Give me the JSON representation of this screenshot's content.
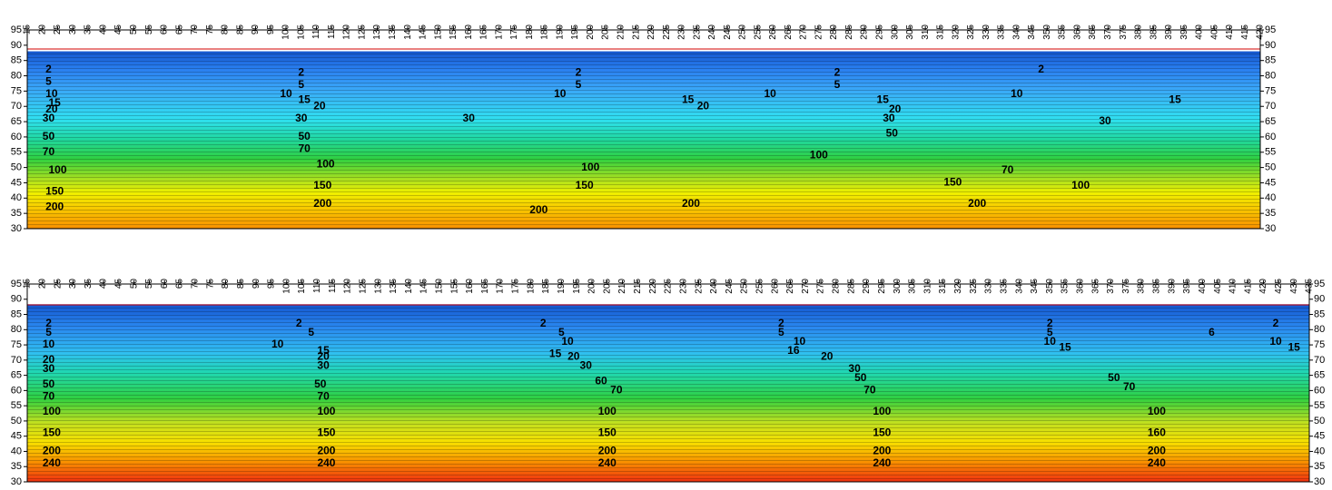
{
  "chart_data": [
    {
      "type": "contour",
      "xlim": [
        15,
        420
      ],
      "xticks": [
        15,
        20,
        25,
        30,
        35,
        40,
        45,
        50,
        55,
        60,
        65,
        70,
        75,
        80,
        85,
        90,
        95,
        100,
        105,
        110,
        115,
        120,
        125,
        130,
        135,
        140,
        145,
        150,
        155,
        160,
        165,
        170,
        175,
        180,
        185,
        190,
        195,
        200,
        205,
        210,
        215,
        220,
        225,
        230,
        235,
        240,
        245,
        250,
        255,
        260,
        265,
        270,
        275,
        280,
        285,
        290,
        295,
        300,
        305,
        310,
        315,
        320,
        325,
        330,
        335,
        340,
        345,
        350,
        355,
        360,
        365,
        370,
        375,
        380,
        385,
        390,
        395,
        400,
        405,
        410,
        415,
        420
      ],
      "ylim": [
        30,
        95
      ],
      "yticks": [
        30,
        35,
        40,
        45,
        50,
        55,
        60,
        65,
        70,
        75,
        80,
        85,
        90,
        95
      ],
      "labels": [
        {
          "x": 22,
          "y": 82,
          "value": 2
        },
        {
          "x": 22,
          "y": 78,
          "value": 5
        },
        {
          "x": 23,
          "y": 74,
          "value": 10
        },
        {
          "x": 24,
          "y": 71,
          "value": 15
        },
        {
          "x": 23,
          "y": 69,
          "value": 20
        },
        {
          "x": 22,
          "y": 66,
          "value": 30
        },
        {
          "x": 22,
          "y": 60,
          "value": 50
        },
        {
          "x": 22,
          "y": 55,
          "value": 70
        },
        {
          "x": 25,
          "y": 49,
          "value": 100
        },
        {
          "x": 24,
          "y": 42,
          "value": 150
        },
        {
          "x": 24,
          "y": 37,
          "value": 200
        },
        {
          "x": 105,
          "y": 81,
          "value": 2
        },
        {
          "x": 105,
          "y": 77,
          "value": 5
        },
        {
          "x": 100,
          "y": 74,
          "value": 10
        },
        {
          "x": 106,
          "y": 72,
          "value": 15
        },
        {
          "x": 111,
          "y": 70,
          "value": 20
        },
        {
          "x": 105,
          "y": 66,
          "value": 30
        },
        {
          "x": 106,
          "y": 60,
          "value": 50
        },
        {
          "x": 106,
          "y": 56,
          "value": 70
        },
        {
          "x": 113,
          "y": 51,
          "value": 100
        },
        {
          "x": 112,
          "y": 44,
          "value": 150
        },
        {
          "x": 112,
          "y": 38,
          "value": 200
        },
        {
          "x": 196,
          "y": 81,
          "value": 2
        },
        {
          "x": 196,
          "y": 77,
          "value": 5
        },
        {
          "x": 190,
          "y": 74,
          "value": 10
        },
        {
          "x": 160,
          "y": 66,
          "value": 30
        },
        {
          "x": 200,
          "y": 50,
          "value": 100
        },
        {
          "x": 198,
          "y": 44,
          "value": 150
        },
        {
          "x": 183,
          "y": 36,
          "value": 200
        },
        {
          "x": 232,
          "y": 72,
          "value": 15
        },
        {
          "x": 237,
          "y": 70,
          "value": 20
        },
        {
          "x": 259,
          "y": 74,
          "value": 10
        },
        {
          "x": 233,
          "y": 38,
          "value": 200
        },
        {
          "x": 281,
          "y": 81,
          "value": 2
        },
        {
          "x": 281,
          "y": 77,
          "value": 5
        },
        {
          "x": 296,
          "y": 72,
          "value": 15
        },
        {
          "x": 300,
          "y": 69,
          "value": 20
        },
        {
          "x": 298,
          "y": 66,
          "value": 30
        },
        {
          "x": 299,
          "y": 61,
          "value": 50
        },
        {
          "x": 275,
          "y": 54,
          "value": 100
        },
        {
          "x": 319,
          "y": 45,
          "value": 150
        },
        {
          "x": 327,
          "y": 38,
          "value": 200
        },
        {
          "x": 348,
          "y": 82,
          "value": 2
        },
        {
          "x": 340,
          "y": 74,
          "value": 10
        },
        {
          "x": 392,
          "y": 72,
          "value": 15
        },
        {
          "x": 369,
          "y": 65,
          "value": 30
        },
        {
          "x": 337,
          "y": 49,
          "value": 70
        },
        {
          "x": 361,
          "y": 44,
          "value": 100
        }
      ]
    },
    {
      "type": "contour",
      "xlim": [
        15,
        435
      ],
      "xticks": [
        15,
        20,
        25,
        30,
        35,
        40,
        45,
        50,
        55,
        60,
        65,
        70,
        75,
        80,
        85,
        90,
        95,
        100,
        105,
        110,
        115,
        120,
        125,
        130,
        135,
        140,
        145,
        150,
        155,
        160,
        165,
        170,
        175,
        180,
        185,
        190,
        195,
        200,
        205,
        210,
        215,
        220,
        225,
        230,
        235,
        240,
        245,
        250,
        255,
        260,
        265,
        270,
        275,
        280,
        285,
        290,
        295,
        300,
        305,
        310,
        315,
        320,
        325,
        330,
        335,
        340,
        345,
        350,
        355,
        360,
        365,
        370,
        375,
        380,
        385,
        390,
        395,
        400,
        405,
        410,
        415,
        420,
        425,
        430,
        435
      ],
      "ylim": [
        30,
        95
      ],
      "yticks": [
        30,
        35,
        40,
        45,
        50,
        55,
        60,
        65,
        70,
        75,
        80,
        85,
        90,
        95
      ],
      "labels": [
        {
          "x": 22,
          "y": 82,
          "value": 2
        },
        {
          "x": 22,
          "y": 79,
          "value": 5
        },
        {
          "x": 22,
          "y": 75,
          "value": 10
        },
        {
          "x": 22,
          "y": 70,
          "value": 20
        },
        {
          "x": 22,
          "y": 67,
          "value": 30
        },
        {
          "x": 22,
          "y": 62,
          "value": 50
        },
        {
          "x": 22,
          "y": 58,
          "value": 70
        },
        {
          "x": 23,
          "y": 53,
          "value": 100
        },
        {
          "x": 23,
          "y": 46,
          "value": 150
        },
        {
          "x": 23,
          "y": 40,
          "value": 200
        },
        {
          "x": 23,
          "y": 36,
          "value": 240
        },
        {
          "x": 104,
          "y": 82,
          "value": 2
        },
        {
          "x": 108,
          "y": 79,
          "value": 5
        },
        {
          "x": 97,
          "y": 75,
          "value": 10
        },
        {
          "x": 112,
          "y": 73,
          "value": 15
        },
        {
          "x": 112,
          "y": 71,
          "value": 20
        },
        {
          "x": 112,
          "y": 68,
          "value": 30
        },
        {
          "x": 111,
          "y": 62,
          "value": 50
        },
        {
          "x": 112,
          "y": 58,
          "value": 70
        },
        {
          "x": 113,
          "y": 53,
          "value": 100
        },
        {
          "x": 113,
          "y": 46,
          "value": 150
        },
        {
          "x": 113,
          "y": 40,
          "value": 200
        },
        {
          "x": 113,
          "y": 36,
          "value": 240
        },
        {
          "x": 184,
          "y": 82,
          "value": 2
        },
        {
          "x": 190,
          "y": 79,
          "value": 5
        },
        {
          "x": 192,
          "y": 76,
          "value": 10
        },
        {
          "x": 188,
          "y": 72,
          "value": 15
        },
        {
          "x": 194,
          "y": 71,
          "value": 20
        },
        {
          "x": 198,
          "y": 68,
          "value": 30
        },
        {
          "x": 203,
          "y": 63,
          "value": 60
        },
        {
          "x": 208,
          "y": 60,
          "value": 70
        },
        {
          "x": 205,
          "y": 53,
          "value": 100
        },
        {
          "x": 205,
          "y": 46,
          "value": 150
        },
        {
          "x": 205,
          "y": 40,
          "value": 200
        },
        {
          "x": 205,
          "y": 36,
          "value": 240
        },
        {
          "x": 262,
          "y": 82,
          "value": 2
        },
        {
          "x": 262,
          "y": 79,
          "value": 5
        },
        {
          "x": 268,
          "y": 76,
          "value": 10
        },
        {
          "x": 266,
          "y": 73,
          "value": 16
        },
        {
          "x": 277,
          "y": 71,
          "value": 20
        },
        {
          "x": 286,
          "y": 67,
          "value": 30
        },
        {
          "x": 288,
          "y": 64,
          "value": 50
        },
        {
          "x": 291,
          "y": 60,
          "value": 70
        },
        {
          "x": 295,
          "y": 53,
          "value": 100
        },
        {
          "x": 295,
          "y": 46,
          "value": 150
        },
        {
          "x": 295,
          "y": 40,
          "value": 200
        },
        {
          "x": 295,
          "y": 36,
          "value": 240
        },
        {
          "x": 350,
          "y": 82,
          "value": 2
        },
        {
          "x": 350,
          "y": 79,
          "value": 5
        },
        {
          "x": 350,
          "y": 76,
          "value": 10
        },
        {
          "x": 355,
          "y": 74,
          "value": 15
        },
        {
          "x": 371,
          "y": 64,
          "value": 50
        },
        {
          "x": 376,
          "y": 61,
          "value": 70
        },
        {
          "x": 385,
          "y": 53,
          "value": 100
        },
        {
          "x": 385,
          "y": 46,
          "value": 160
        },
        {
          "x": 385,
          "y": 40,
          "value": 200
        },
        {
          "x": 385,
          "y": 36,
          "value": 240
        },
        {
          "x": 403,
          "y": 79,
          "value": 6
        },
        {
          "x": 424,
          "y": 82,
          "value": 2
        },
        {
          "x": 424,
          "y": 76,
          "value": 10
        },
        {
          "x": 430,
          "y": 74,
          "value": 15
        }
      ]
    }
  ]
}
